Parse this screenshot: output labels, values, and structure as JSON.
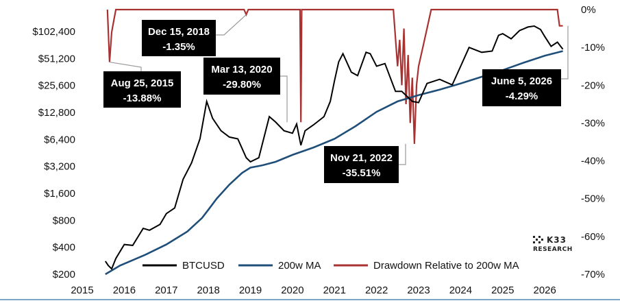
{
  "chart_data": {
    "type": "line",
    "title": "",
    "xlabel": "",
    "ylabel": "",
    "x_axis": {
      "range": [
        2015.0,
        2026.6
      ],
      "ticks": [
        "2015",
        "2016",
        "2017",
        "2018",
        "2019",
        "2020",
        "2021",
        "2022",
        "2023",
        "2024",
        "2025",
        "2026"
      ]
    },
    "left_axis": {
      "scale": "log2",
      "range": [
        200,
        180000
      ],
      "ticks": [
        "$200",
        "$400",
        "$800",
        "$1,600",
        "$3,200",
        "$6,400",
        "$12,800",
        "$25,600",
        "$51,200",
        "$102,400"
      ],
      "tick_values": [
        200,
        400,
        800,
        1600,
        3200,
        6400,
        12800,
        25600,
        51200,
        102400
      ]
    },
    "right_axis": {
      "range": [
        -70,
        0
      ],
      "ticks": [
        "0%",
        "-10%",
        "-20%",
        "-30%",
        "-40%",
        "-50%",
        "-60%",
        "-70%"
      ],
      "tick_values": [
        0,
        -10,
        -20,
        -30,
        -40,
        -50,
        -60,
        -70
      ]
    },
    "legend": {
      "placement": "bottom-center"
    },
    "series": [
      {
        "name": "BTCUSD",
        "color": "#000000",
        "axis": "left",
        "x": [
          2015.55,
          2015.62,
          2015.7,
          2015.8,
          2016.0,
          2016.2,
          2016.45,
          2016.6,
          2016.85,
          2017.0,
          2017.2,
          2017.4,
          2017.6,
          2017.8,
          2017.96,
          2018.1,
          2018.3,
          2018.5,
          2018.7,
          2018.9,
          2019.0,
          2019.2,
          2019.45,
          2019.6,
          2019.8,
          2020.0,
          2020.1,
          2020.2,
          2020.3,
          2020.5,
          2020.75,
          2020.9,
          2021.0,
          2021.1,
          2021.2,
          2021.4,
          2021.55,
          2021.75,
          2021.85,
          2022.0,
          2022.2,
          2022.45,
          2022.6,
          2022.85,
          2023.0,
          2023.2,
          2023.5,
          2023.8,
          2024.0,
          2024.2,
          2024.5,
          2024.75,
          2024.9,
          2025.0,
          2025.2,
          2025.4,
          2025.6,
          2025.75,
          2025.9,
          2026.0,
          2026.15,
          2026.3,
          2026.43
        ],
        "values": [
          280,
          250,
          230,
          300,
          430,
          420,
          650,
          620,
          720,
          950,
          1100,
          2300,
          3500,
          6500,
          17000,
          11000,
          8000,
          6800,
          6500,
          4000,
          3600,
          4000,
          11500,
          10000,
          8000,
          7500,
          9500,
          5500,
          8000,
          9300,
          11500,
          17000,
          29000,
          47000,
          58000,
          36000,
          33000,
          60000,
          58000,
          42000,
          45000,
          22000,
          22000,
          17000,
          16500,
          27000,
          30000,
          26000,
          42000,
          68000,
          60000,
          62000,
          93000,
          97000,
          85000,
          105000,
          115000,
          118000,
          108000,
          90000,
          70000,
          78000,
          65000
        ]
      },
      {
        "name": "200w MA",
        "color": "#1f4e79",
        "axis": "left",
        "x": [
          2015.55,
          2015.9,
          2016.5,
          2017.0,
          2017.5,
          2017.85,
          2018.0,
          2018.2,
          2018.5,
          2018.8,
          2019.0,
          2019.3,
          2019.6,
          2020.0,
          2020.5,
          2021.0,
          2021.5,
          2022.0,
          2022.5,
          2023.0,
          2023.5,
          2024.0,
          2024.5,
          2025.0,
          2025.5,
          2026.0,
          2026.43
        ],
        "values": [
          200,
          250,
          330,
          430,
          600,
          850,
          1050,
          1400,
          2000,
          2700,
          3100,
          3300,
          3600,
          4300,
          5200,
          6500,
          9000,
          13000,
          17000,
          20000,
          23000,
          27000,
          32000,
          38000,
          46000,
          55000,
          62000
        ]
      },
      {
        "name": "Drawdown Relative to 200w MA",
        "color": "#a83232",
        "axis": "right",
        "x": [
          2015.6,
          2015.65,
          2015.7,
          2015.75,
          2015.8,
          2018.85,
          2018.9,
          2018.95,
          2020.18,
          2020.2,
          2020.22,
          2022.4,
          2022.5,
          2022.55,
          2022.6,
          2022.65,
          2022.7,
          2022.75,
          2022.8,
          2022.85,
          2022.9,
          2022.95,
          2023.0,
          2023.1,
          2023.2,
          2023.3,
          2024.0,
          2024.1,
          2026.3,
          2026.35,
          2026.43
        ],
        "values": [
          0,
          -13.88,
          -6,
          -3,
          0,
          0,
          -1.35,
          0,
          0,
          -29.8,
          0,
          0,
          -15,
          -8,
          -20,
          -5,
          -25,
          -12,
          -30,
          -18,
          -35.51,
          -20,
          -15,
          -10,
          -5,
          0,
          0,
          0,
          0,
          -4.29,
          -4.29
        ]
      }
    ],
    "annotations": [
      {
        "date": "Dec 15, 2018",
        "value": "-1.35%"
      },
      {
        "date": "Aug 25, 2015",
        "value": "-13.88%"
      },
      {
        "date": "Mar 13, 2020",
        "value": "-29.80%"
      },
      {
        "date": "Nov 21, 2022",
        "value": "-35.51%"
      },
      {
        "date": "June 5, 2026",
        "value": "-4.29%"
      }
    ]
  },
  "brand": {
    "name": "K33",
    "tagline": "RESEARCH"
  }
}
